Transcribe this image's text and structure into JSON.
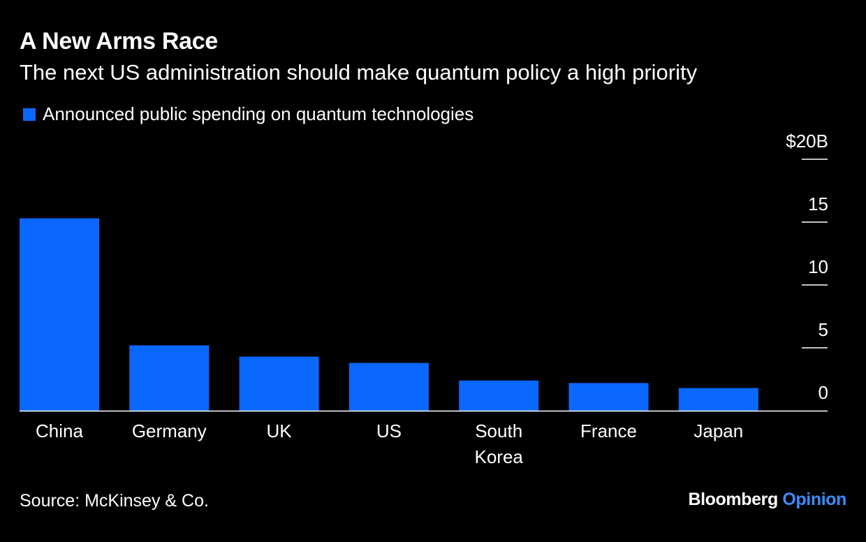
{
  "title": "A New Arms Race",
  "subtitle": "The next US administration should make quantum policy a high priority",
  "source": "Source: McKinsey & Co.",
  "brand": {
    "primary": "Bloomberg",
    "secondary": "Opinion",
    "primary_color": "#ffffff",
    "secondary_color": "#3b8bff"
  },
  "colors": {
    "background": "#000000",
    "bar": "#0a68ff",
    "text": "#ffffff",
    "axis": "#ffffff"
  },
  "chart_data": {
    "type": "bar",
    "title": "A New Arms Race",
    "subtitle": "The next US administration should make quantum policy a high priority",
    "legend": {
      "position": "top-left",
      "entries": [
        "Announced public spending on quantum technologies"
      ]
    },
    "categories": [
      "China",
      "Germany",
      "UK",
      "US",
      "South Korea",
      "France",
      "Japan"
    ],
    "category_lines": [
      [
        "China"
      ],
      [
        "Germany"
      ],
      [
        "UK"
      ],
      [
        "US"
      ],
      [
        "South",
        "Korea"
      ],
      [
        "France"
      ],
      [
        "Japan"
      ]
    ],
    "series": [
      {
        "name": "Announced public spending on quantum technologies",
        "values": [
          15.3,
          5.2,
          4.3,
          3.8,
          2.4,
          2.2,
          1.8
        ]
      }
    ],
    "y_axis": {
      "position": "right",
      "ticks": [
        0,
        5,
        10,
        15,
        20
      ],
      "tick_labels": [
        "0",
        "5",
        "10",
        "15",
        "$20B"
      ]
    },
    "ylim": [
      0,
      20
    ],
    "grid": false,
    "xlabel": "",
    "ylabel": ""
  }
}
